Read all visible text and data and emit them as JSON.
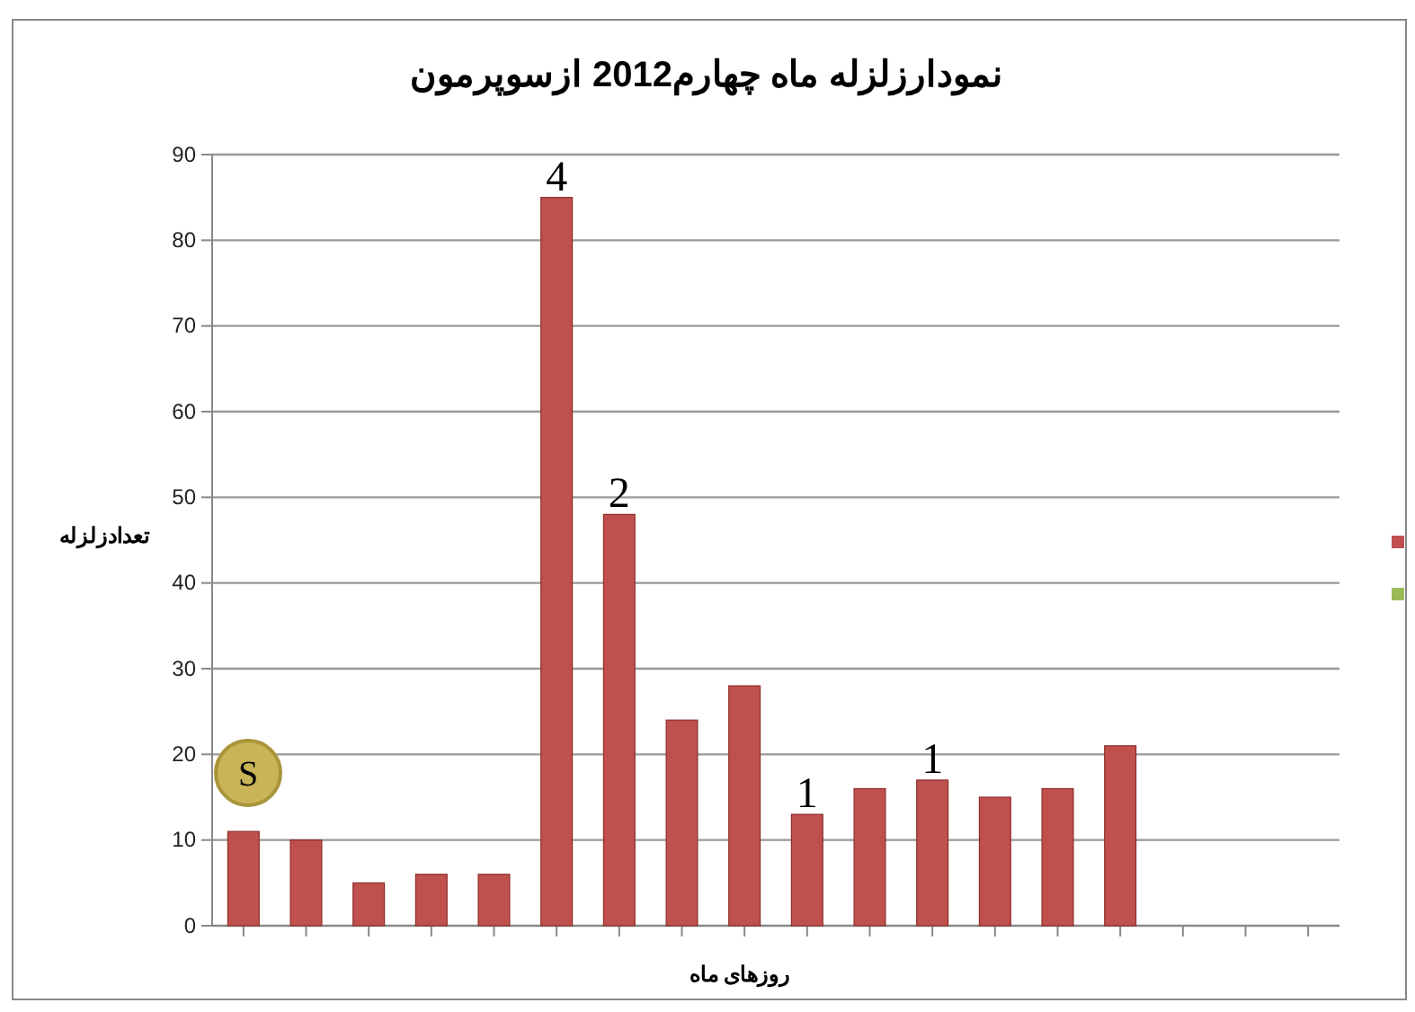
{
  "chart_data": {
    "type": "bar",
    "title": "نمودارزلزله ماه چهارم2012 ازسوپرمون",
    "xlabel": "روزهای ماه",
    "ylabel": "تعدادزلزله",
    "categories": [
      null,
      null,
      null,
      null,
      null,
      null,
      null,
      null,
      null,
      null,
      null,
      null,
      null,
      null,
      null,
      null,
      null,
      null
    ],
    "series": [
      {
        "color": "#c0504d",
        "values": [
          11,
          10,
          5,
          6,
          6,
          85,
          48,
          24,
          28,
          13,
          16,
          17,
          15,
          16,
          21,
          null,
          null,
          null
        ]
      }
    ],
    "annotations": [
      "S",
      {
        "text": "4",
        "y": 85
      },
      {
        "text": "2",
        "y": 48
      },
      {
        "text": "1",
        "y": 13
      },
      {
        "text": "1",
        "y": 17
      }
    ],
    "ylim": [
      0,
      90
    ],
    "yticks": [
      0,
      10,
      20,
      30,
      40,
      50,
      60,
      70,
      80,
      90
    ],
    "grid": "y"
  }
}
